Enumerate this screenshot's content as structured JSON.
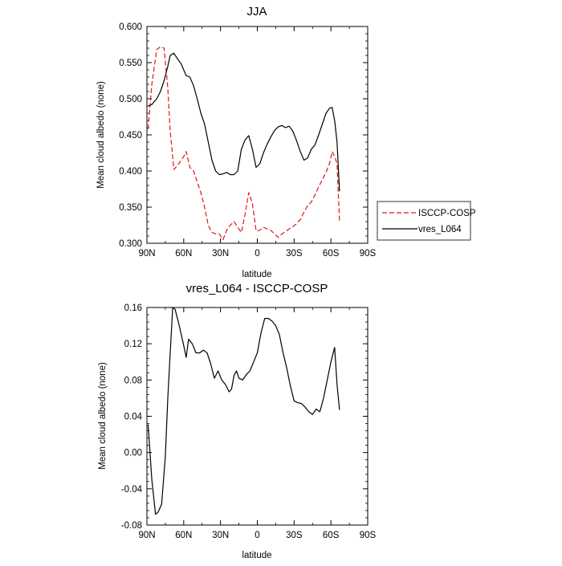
{
  "chart_data": [
    {
      "type": "line",
      "title": "JJA",
      "xlabel": "latitude",
      "ylabel": "Mean cloud albedo (none)",
      "xlim": [
        90,
        -90
      ],
      "ylim": [
        0.3,
        0.6
      ],
      "xticks": [
        90,
        60,
        30,
        0,
        -30,
        -60,
        -90
      ],
      "xtick_labels": [
        "90N",
        "60N",
        "30N",
        "0",
        "30S",
        "60S",
        "90S"
      ],
      "yticks": [
        0.3,
        0.35,
        0.4,
        0.45,
        0.5,
        0.55,
        0.6
      ],
      "ytick_labels": [
        "0.300",
        "0.350",
        "0.400",
        "0.450",
        "0.500",
        "0.550",
        "0.600"
      ],
      "legend": {
        "placement": "right",
        "entries": [
          "ISCCP-COSP",
          "vres_L064"
        ]
      },
      "series": [
        {
          "name": "ISCCP-COSP",
          "color": "#e0141e",
          "dash": "dashed",
          "x": [
            89,
            86,
            82,
            79,
            76,
            73,
            71,
            68,
            65,
            62,
            60,
            58,
            55,
            52,
            49,
            46,
            43,
            40,
            37,
            34,
            31,
            28,
            25,
            22,
            19,
            16,
            13,
            10,
            7,
            4,
            1,
            -2,
            -5,
            -8,
            -11,
            -14,
            -17,
            -20,
            -23,
            -26,
            -29,
            -32,
            -35,
            -38,
            -41,
            -44,
            -47,
            -50,
            -53,
            -56,
            -59,
            -61,
            -63,
            -65,
            -67
          ],
          "y": [
            0.458,
            0.52,
            0.568,
            0.572,
            0.57,
            0.515,
            0.455,
            0.402,
            0.408,
            0.415,
            0.42,
            0.427,
            0.405,
            0.4,
            0.385,
            0.37,
            0.35,
            0.325,
            0.315,
            0.313,
            0.313,
            0.305,
            0.318,
            0.325,
            0.33,
            0.322,
            0.315,
            0.34,
            0.37,
            0.355,
            0.317,
            0.318,
            0.322,
            0.32,
            0.318,
            0.313,
            0.308,
            0.313,
            0.316,
            0.32,
            0.323,
            0.327,
            0.333,
            0.343,
            0.352,
            0.357,
            0.367,
            0.378,
            0.388,
            0.398,
            0.411,
            0.427,
            0.42,
            0.41,
            0.33
          ]
        },
        {
          "name": "vres_L064",
          "color": "#000000",
          "dash": "solid",
          "x": [
            89,
            86,
            82,
            79,
            76,
            73,
            71,
            68,
            65,
            62,
            60,
            58,
            55,
            52,
            49,
            46,
            43,
            40,
            37,
            34,
            31,
            28,
            25,
            22,
            19,
            16,
            13,
            10,
            7,
            4,
            1,
            -2,
            -5,
            -8,
            -11,
            -14,
            -17,
            -20,
            -23,
            -26,
            -29,
            -32,
            -35,
            -38,
            -41,
            -44,
            -47,
            -50,
            -53,
            -56,
            -59,
            -61,
            -63,
            -65,
            -67
          ],
          "y": [
            0.49,
            0.492,
            0.5,
            0.51,
            0.525,
            0.545,
            0.56,
            0.563,
            0.555,
            0.548,
            0.54,
            0.532,
            0.53,
            0.518,
            0.5,
            0.48,
            0.465,
            0.44,
            0.415,
            0.4,
            0.395,
            0.396,
            0.398,
            0.395,
            0.395,
            0.4,
            0.43,
            0.443,
            0.449,
            0.43,
            0.405,
            0.41,
            0.425,
            0.437,
            0.447,
            0.456,
            0.461,
            0.463,
            0.46,
            0.462,
            0.455,
            0.442,
            0.427,
            0.415,
            0.418,
            0.43,
            0.436,
            0.45,
            0.465,
            0.48,
            0.487,
            0.488,
            0.47,
            0.44,
            0.372
          ]
        }
      ]
    },
    {
      "type": "line",
      "title": "vres_L064 - ISCCP-COSP",
      "xlabel": "latitude",
      "ylabel": "Mean cloud albedo (none)",
      "xlim": [
        90,
        -90
      ],
      "ylim": [
        -0.08,
        0.16
      ],
      "xticks": [
        90,
        60,
        30,
        0,
        -30,
        -60,
        -90
      ],
      "xtick_labels": [
        "90N",
        "60N",
        "30N",
        "0",
        "30S",
        "60S",
        "90S"
      ],
      "yticks": [
        -0.08,
        -0.04,
        0.0,
        0.04,
        0.08,
        0.12,
        0.16
      ],
      "ytick_labels": [
        "-0.08",
        "-0.04",
        "0.00",
        "0.04",
        "0.08",
        "0.12",
        "0.16"
      ],
      "series": [
        {
          "color": "#000000",
          "dash": "solid",
          "x": [
            89,
            86,
            83,
            81,
            78,
            75,
            73,
            71,
            69,
            67,
            64,
            62,
            60,
            58,
            56,
            53,
            50,
            47,
            44,
            41,
            38,
            35,
            32,
            29,
            26,
            23,
            21,
            19,
            17,
            15,
            12,
            9,
            6,
            3,
            0,
            -3,
            -6,
            -9,
            -12,
            -15,
            -18,
            -21,
            -24,
            -27,
            -30,
            -33,
            -36,
            -39,
            -42,
            -45,
            -48,
            -51,
            -54,
            -57,
            -60,
            -63,
            -65,
            -67
          ],
          "y": [
            0.031,
            -0.03,
            -0.068,
            -0.066,
            -0.057,
            -0.005,
            0.06,
            0.11,
            0.16,
            0.158,
            0.142,
            0.13,
            0.118,
            0.105,
            0.125,
            0.12,
            0.11,
            0.11,
            0.113,
            0.11,
            0.098,
            0.082,
            0.09,
            0.08,
            0.075,
            0.067,
            0.07,
            0.085,
            0.09,
            0.082,
            0.08,
            0.086,
            0.09,
            0.1,
            0.11,
            0.132,
            0.148,
            0.148,
            0.145,
            0.14,
            0.13,
            0.11,
            0.093,
            0.073,
            0.057,
            0.055,
            0.054,
            0.05,
            0.045,
            0.042,
            0.048,
            0.045,
            0.06,
            0.08,
            0.1,
            0.116,
            0.075,
            0.047
          ]
        }
      ]
    }
  ]
}
